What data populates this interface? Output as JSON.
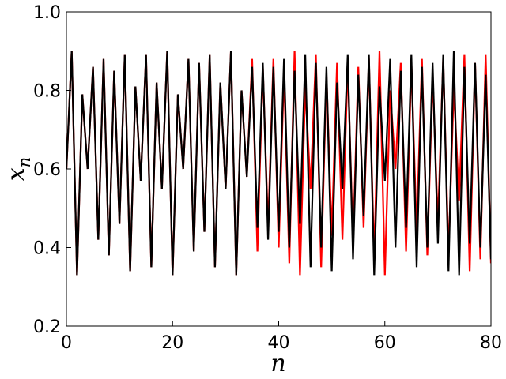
{
  "chart_data": {
    "type": "line",
    "title": "",
    "xlabel": "n",
    "ylabel_base": "x",
    "ylabel_sub": "n",
    "xlim": [
      0,
      80
    ],
    "ylim": [
      0.2,
      1.0
    ],
    "xticks": [
      0,
      20,
      40,
      60,
      80
    ],
    "xtick_labels": [
      "0",
      "20",
      "40",
      "60",
      "80"
    ],
    "yticks": [
      0.2,
      0.4,
      0.6,
      0.8,
      1.0
    ],
    "ytick_labels": [
      "0.2",
      "0.4",
      "0.6",
      "0.8",
      "1.0"
    ],
    "grid": false,
    "legend": "none",
    "series": [
      {
        "color": "#ff0000",
        "x": [
          0,
          1,
          2,
          3,
          4,
          5,
          6,
          7,
          8,
          9,
          10,
          11,
          12,
          13,
          14,
          15,
          16,
          17,
          18,
          19,
          20,
          21,
          22,
          23,
          24,
          25,
          26,
          27,
          28,
          29,
          30,
          31,
          32,
          33,
          34,
          35,
          36,
          37,
          38,
          39,
          40,
          41,
          42,
          43,
          44,
          45,
          46,
          47,
          48,
          49,
          50,
          51,
          52,
          53,
          54,
          55,
          56,
          57,
          58,
          59,
          60,
          61,
          62,
          63,
          64,
          65,
          66,
          67,
          68,
          69,
          70,
          71,
          72,
          73,
          74,
          75,
          76,
          77,
          78,
          79,
          80
        ],
        "values": [
          0.6,
          0.9,
          0.33,
          0.79,
          0.6,
          0.86,
          0.42,
          0.88,
          0.38,
          0.85,
          0.46,
          0.89,
          0.34,
          0.81,
          0.57,
          0.89,
          0.35,
          0.82,
          0.55,
          0.9,
          0.33,
          0.79,
          0.6,
          0.88,
          0.39,
          0.87,
          0.44,
          0.89,
          0.35,
          0.82,
          0.55,
          0.9,
          0.33,
          0.8,
          0.58,
          0.88,
          0.39,
          0.86,
          0.45,
          0.88,
          0.4,
          0.85,
          0.36,
          0.9,
          0.33,
          0.81,
          0.55,
          0.89,
          0.35,
          0.84,
          0.43,
          0.87,
          0.42,
          0.87,
          0.41,
          0.86,
          0.45,
          0.88,
          0.37,
          0.9,
          0.33,
          0.8,
          0.6,
          0.87,
          0.39,
          0.87,
          0.44,
          0.88,
          0.38,
          0.84,
          0.46,
          0.88,
          0.38,
          0.81,
          0.52,
          0.89,
          0.34,
          0.87,
          0.37,
          0.89,
          0.36
        ]
      },
      {
        "color": "#000000",
        "x": [
          0,
          1,
          2,
          3,
          4,
          5,
          6,
          7,
          8,
          9,
          10,
          11,
          12,
          13,
          14,
          15,
          16,
          17,
          18,
          19,
          20,
          21,
          22,
          23,
          24,
          25,
          26,
          27,
          28,
          29,
          30,
          31,
          32,
          33,
          34,
          35,
          36,
          37,
          38,
          39,
          40,
          41,
          42,
          43,
          44,
          45,
          46,
          47,
          48,
          49,
          50,
          51,
          52,
          53,
          54,
          55,
          56,
          57,
          58,
          59,
          60,
          61,
          62,
          63,
          64,
          65,
          66,
          67,
          68,
          69,
          70,
          71,
          72,
          73,
          74,
          75,
          76,
          77,
          78,
          79,
          80
        ],
        "values": [
          0.6,
          0.9,
          0.33,
          0.79,
          0.6,
          0.86,
          0.42,
          0.88,
          0.38,
          0.85,
          0.46,
          0.89,
          0.34,
          0.81,
          0.57,
          0.89,
          0.35,
          0.82,
          0.55,
          0.9,
          0.33,
          0.79,
          0.6,
          0.88,
          0.39,
          0.87,
          0.44,
          0.89,
          0.35,
          0.82,
          0.55,
          0.9,
          0.33,
          0.8,
          0.58,
          0.86,
          0.45,
          0.87,
          0.42,
          0.86,
          0.44,
          0.88,
          0.4,
          0.85,
          0.46,
          0.89,
          0.35,
          0.87,
          0.4,
          0.86,
          0.34,
          0.82,
          0.55,
          0.89,
          0.37,
          0.84,
          0.48,
          0.89,
          0.33,
          0.81,
          0.57,
          0.88,
          0.4,
          0.85,
          0.45,
          0.89,
          0.35,
          0.86,
          0.4,
          0.87,
          0.41,
          0.89,
          0.34,
          0.9,
          0.33,
          0.86,
          0.41,
          0.87,
          0.4,
          0.84,
          0.37
        ]
      }
    ]
  }
}
